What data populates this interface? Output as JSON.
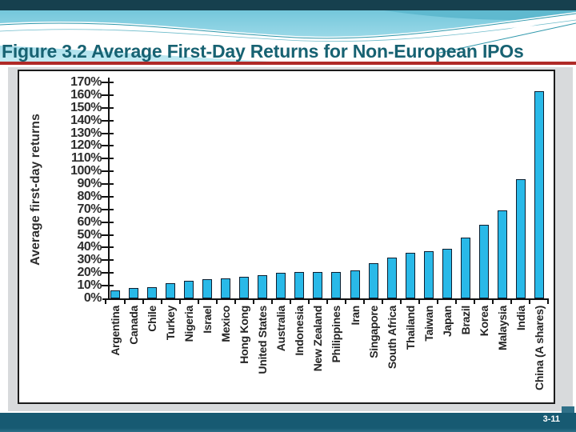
{
  "slide": {
    "title": "Figure 3.2 Average First-Day Returns for Non-European IPOs",
    "page_number": "3-11"
  },
  "colors": {
    "top_bar": "#16404e",
    "title_text": "#176272",
    "red_underline": "#b02a27",
    "footer_band": "#175a72",
    "bar_fill": "#29b9e8",
    "bar_border": "#0c1e30",
    "axis_text": "#2e2e2e",
    "frame_gray": "#d8dadc"
  },
  "chart_data": {
    "type": "bar",
    "title": "",
    "xlabel": "",
    "ylabel": "Average first-day returns",
    "ylim": [
      0,
      170
    ],
    "ytick_step": 10,
    "ytick_suffix": "%",
    "grid": false,
    "legend": false,
    "categories": [
      "Argentina",
      "Canada",
      "Chile",
      "Turkey",
      "Nigeria",
      "Israel",
      "Mexico",
      "Hong Kong",
      "United States",
      "Australia",
      "Indonesia",
      "New Zealand",
      "Philippines",
      "Iran",
      "Singapore",
      "South Africa",
      "Thailand",
      "Taiwan",
      "Japan",
      "Brazil",
      "Korea",
      "Malaysia",
      "India",
      "China (A shares)"
    ],
    "values": [
      6,
      8,
      9,
      12,
      14,
      15,
      16,
      17,
      18,
      20,
      21,
      21,
      21,
      22,
      28,
      32,
      36,
      37,
      39,
      48,
      58,
      69,
      94,
      163
    ]
  }
}
